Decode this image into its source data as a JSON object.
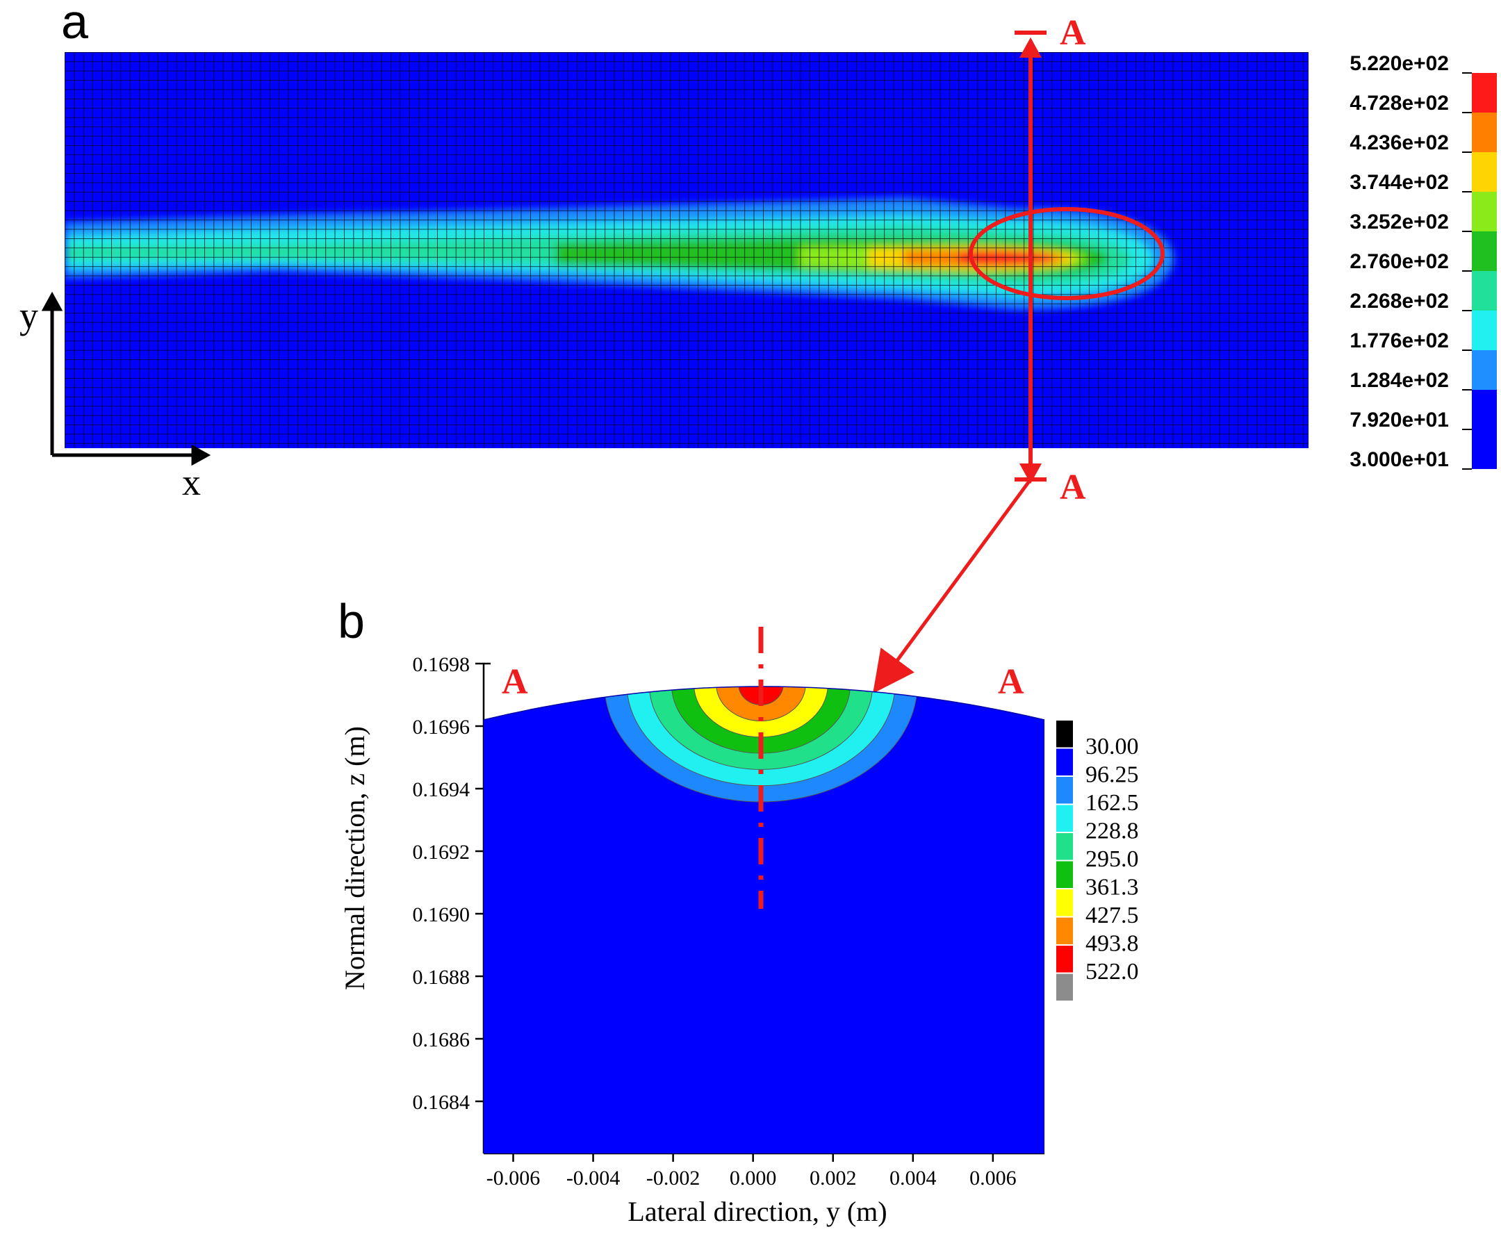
{
  "panel_a": {
    "label": "a",
    "axis_y_label": "y",
    "axis_x_label": "x",
    "section_marker_top": "A",
    "section_marker_bottom": "A",
    "colorbar_ticks": [
      "5.220e+02",
      "4.728e+02",
      "4.236e+02",
      "3.744e+02",
      "3.252e+02",
      "2.760e+02",
      "2.268e+02",
      "1.776e+02",
      "1.284e+02",
      "7.920e+01",
      "3.000e+01"
    ],
    "colorbar_colors": [
      "#ff1a1a",
      "#ff8000",
      "#ffd500",
      "#8aea1a",
      "#20c020",
      "#20e09a",
      "#20f0f0",
      "#1f8fff",
      "#0000ff",
      "#0000ff"
    ],
    "colors": {
      "background": "#0000ff",
      "grid": "#000000",
      "highlight": "#ff1a1a"
    }
  },
  "panel_b": {
    "label": "b",
    "section_marker_left": "A",
    "section_marker_right": "A",
    "xlabel": "Lateral direction, y (m)",
    "ylabel": "Normal direction, z (m)",
    "xticks": [
      "-0.006",
      "-0.004",
      "-0.002",
      "0.000",
      "0.002",
      "0.004",
      "0.006"
    ],
    "yticks": [
      "0.1698",
      "0.1696",
      "0.1694",
      "0.1692",
      "0.1690",
      "0.1688",
      "0.1686",
      "0.1684"
    ],
    "legend_values": [
      "30.00",
      "96.25",
      "162.5",
      "228.8",
      "295.0",
      "361.3",
      "427.5",
      "493.8",
      "522.0"
    ],
    "legend_colors": [
      "#000000",
      "#0000ff",
      "#1e88ff",
      "#20f0f0",
      "#20e08a",
      "#10c010",
      "#ffff00",
      "#ff8800",
      "#ff0000",
      "#8c8c8c"
    ],
    "contour_colors": [
      "#1e88ff",
      "#20f0f0",
      "#20e08a",
      "#10c010",
      "#ffff00",
      "#ff8800",
      "#ff0000"
    ]
  }
}
